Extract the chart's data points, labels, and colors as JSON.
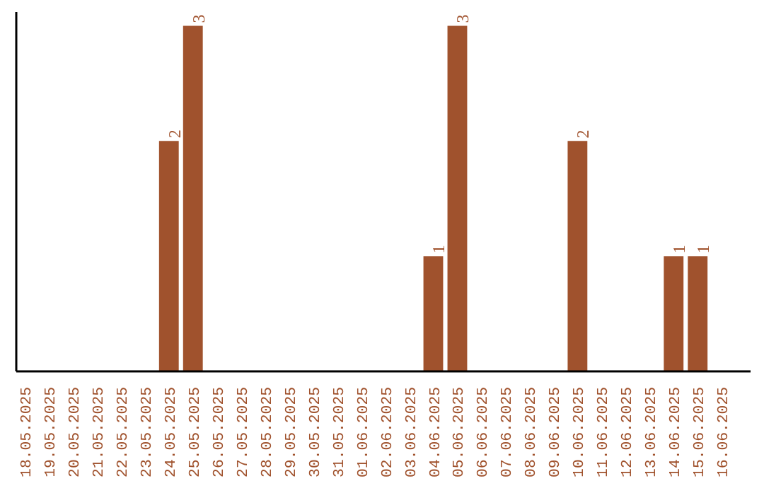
{
  "chart_data": {
    "type": "bar",
    "categories": [
      "18.05.2025",
      "19.05.2025",
      "20.05.2025",
      "21.05.2025",
      "22.05.2025",
      "23.05.2025",
      "24.05.2025",
      "25.05.2025",
      "26.05.2025",
      "27.05.2025",
      "28.05.2025",
      "29.05.2025",
      "30.05.2025",
      "31.05.2025",
      "01.06.2025",
      "02.06.2025",
      "03.06.2025",
      "04.06.2025",
      "05.06.2025",
      "06.06.2025",
      "07.06.2025",
      "08.06.2025",
      "09.06.2025",
      "10.06.2025",
      "11.06.2025",
      "12.06.2025",
      "13.06.2025",
      "14.06.2025",
      "15.06.2025",
      "16.06.2025"
    ],
    "values": [
      0,
      0,
      0,
      0,
      0,
      0,
      2,
      3,
      0,
      0,
      0,
      0,
      0,
      0,
      0,
      0,
      0,
      1,
      3,
      0,
      0,
      0,
      0,
      2,
      0,
      0,
      0,
      1,
      1,
      0
    ],
    "value_labels": [
      null,
      null,
      null,
      null,
      null,
      null,
      "2",
      "3",
      null,
      null,
      null,
      null,
      null,
      null,
      null,
      null,
      null,
      "1",
      "3",
      null,
      null,
      null,
      null,
      "2",
      null,
      null,
      null,
      "1",
      "1",
      null
    ],
    "color": "#a0522d",
    "ylim": [
      0,
      3.12
    ],
    "tick_labels": "x",
    "grid": false
  }
}
